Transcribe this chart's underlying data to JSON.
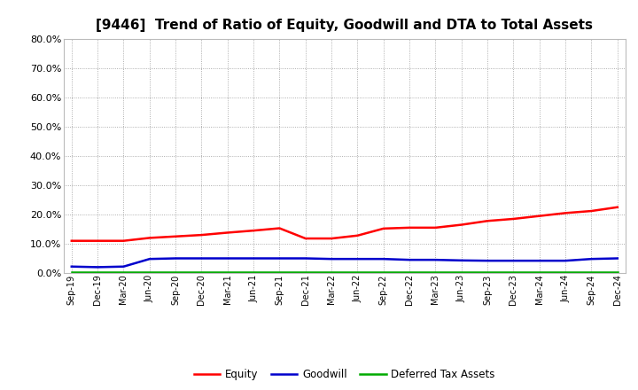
{
  "title": "[9446]  Trend of Ratio of Equity, Goodwill and DTA to Total Assets",
  "x_labels": [
    "Sep-19",
    "Dec-19",
    "Mar-20",
    "Jun-20",
    "Sep-20",
    "Dec-20",
    "Mar-21",
    "Jun-21",
    "Sep-21",
    "Dec-21",
    "Mar-22",
    "Jun-22",
    "Sep-22",
    "Dec-22",
    "Mar-23",
    "Jun-23",
    "Sep-23",
    "Dec-23",
    "Mar-24",
    "Jun-24",
    "Sep-24",
    "Dec-24"
  ],
  "equity": [
    11.0,
    11.0,
    11.0,
    12.0,
    12.5,
    13.0,
    13.8,
    14.5,
    15.3,
    11.8,
    11.8,
    12.8,
    15.2,
    15.5,
    15.5,
    16.5,
    17.8,
    18.5,
    19.5,
    20.5,
    21.2,
    22.5
  ],
  "goodwill": [
    2.2,
    2.0,
    2.2,
    4.8,
    5.0,
    5.0,
    5.0,
    5.0,
    5.0,
    5.0,
    4.8,
    4.8,
    4.8,
    4.5,
    4.5,
    4.3,
    4.2,
    4.2,
    4.2,
    4.2,
    4.8,
    5.0
  ],
  "dta": [
    0.3,
    0.3,
    0.3,
    0.3,
    0.3,
    0.3,
    0.3,
    0.3,
    0.3,
    0.3,
    0.3,
    0.3,
    0.3,
    0.3,
    0.3,
    0.3,
    0.3,
    0.3,
    0.3,
    0.3,
    0.3,
    0.3
  ],
  "equity_color": "#ff0000",
  "goodwill_color": "#0000cc",
  "dta_color": "#00aa00",
  "ylim": [
    0,
    80
  ],
  "yticks": [
    0,
    10,
    20,
    30,
    40,
    50,
    60,
    70,
    80
  ],
  "background_color": "#ffffff",
  "plot_bg_color": "#ffffff",
  "grid_color": "#999999",
  "title_fontsize": 11,
  "legend_labels": [
    "Equity",
    "Goodwill",
    "Deferred Tax Assets"
  ]
}
